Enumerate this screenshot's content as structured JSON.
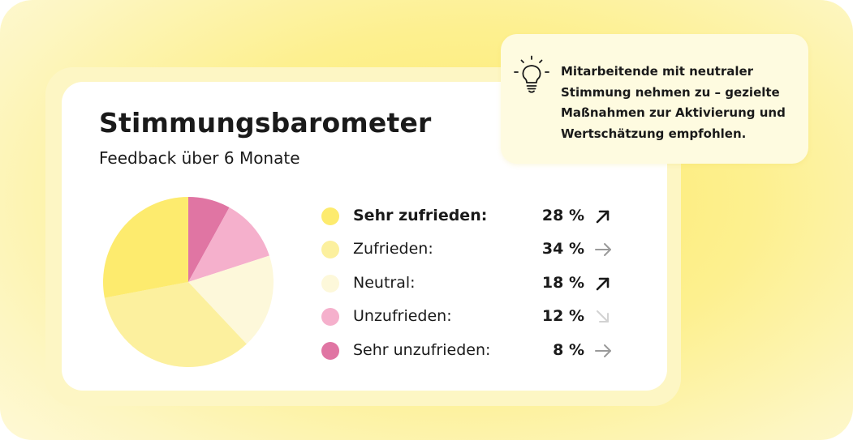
{
  "card": {
    "title": "Stimmungsbarometer",
    "subtitle": "Feedback über 6 Monate"
  },
  "hint": {
    "icon": "lightbulb-icon",
    "text": "Mitarbeitende mit neutraler Stimmung nehmen zu – gezielte Maßnahmen zur Aktivierung und Wertschätzung empfohlen."
  },
  "legend": [
    {
      "label": "Sehr zufrieden:",
      "value": "28 %",
      "trend": "up",
      "bold": true
    },
    {
      "label": "Zufrieden:",
      "value": "34 %",
      "trend": "flat"
    },
    {
      "label": "Neutral:",
      "value": "18 %",
      "trend": "up"
    },
    {
      "label": "Unzufrieden:",
      "value": "12 %",
      "trend": "down"
    },
    {
      "label": "Sehr unzufrieden:",
      "value": "8 %",
      "trend": "flat"
    }
  ],
  "colors": {
    "sehr_zufrieden": "#fdeb6e",
    "zufrieden": "#fcf09e",
    "neutral": "#fdf8da",
    "unzufrieden": "#f5b0cc",
    "sehr_unzufrieden": "#e075a3",
    "arrow_up": "#1a1a1a",
    "arrow_flat": "#9a9a9a",
    "arrow_down": "#d2d2d2"
  },
  "chart_data": {
    "type": "pie",
    "title": "Stimmungsbarometer",
    "subtitle": "Feedback über 6 Monate",
    "categories": [
      "Sehr zufrieden",
      "Zufrieden",
      "Neutral",
      "Unzufrieden",
      "Sehr unzufrieden"
    ],
    "values": [
      28,
      34,
      18,
      12,
      8
    ],
    "unit": "%",
    "legend": "right"
  }
}
